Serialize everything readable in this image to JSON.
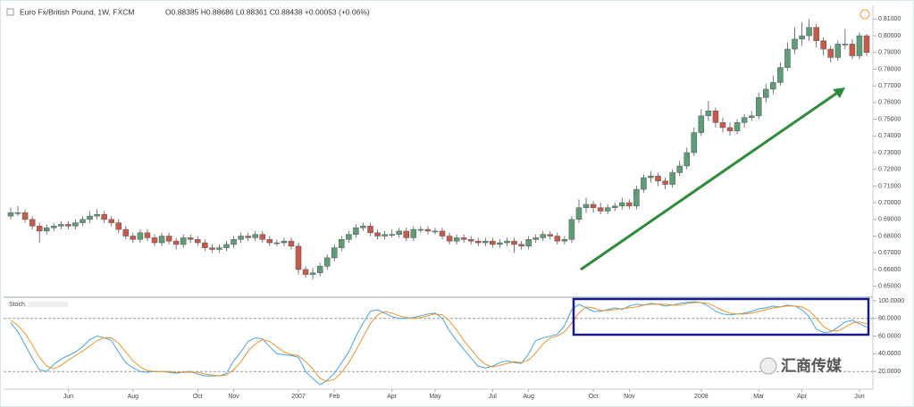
{
  "chart_data": [
    {
      "type": "candlestick",
      "title": "Euro Fx/British Pound, 1W, FXCM",
      "subtitle": "O0.88385 H0.88686 L0.88361 C0.88438 +0.00053 (+0.06%)",
      "up_color": "#5e9e77",
      "down_color": "#c95a4a",
      "open": [
        0.692,
        0.694,
        0.694,
        0.69,
        0.686,
        0.683,
        0.685,
        0.686,
        0.687,
        0.686,
        0.688,
        0.69,
        0.692,
        0.693,
        0.69,
        0.688,
        0.684,
        0.68,
        0.678,
        0.682,
        0.679,
        0.676,
        0.68,
        0.677,
        0.675,
        0.679,
        0.678,
        0.676,
        0.673,
        0.672,
        0.673,
        0.675,
        0.678,
        0.68,
        0.679,
        0.681,
        0.678,
        0.676,
        0.676,
        0.677,
        0.674,
        0.66,
        0.657,
        0.658,
        0.662,
        0.667,
        0.673,
        0.678,
        0.681,
        0.685,
        0.686,
        0.682,
        0.68,
        0.681,
        0.681,
        0.683,
        0.679,
        0.684,
        0.684,
        0.683,
        0.683,
        0.68,
        0.677,
        0.679,
        0.678,
        0.677,
        0.676,
        0.677,
        0.675,
        0.676,
        0.677,
        0.675,
        0.674,
        0.678,
        0.679,
        0.681,
        0.68,
        0.677,
        0.678,
        0.69,
        0.697,
        0.699,
        0.697,
        0.695,
        0.697,
        0.698,
        0.7,
        0.698,
        0.708,
        0.715,
        0.716,
        0.713,
        0.711,
        0.718,
        0.722,
        0.73,
        0.742,
        0.752,
        0.755,
        0.748,
        0.745,
        0.743,
        0.748,
        0.751,
        0.752,
        0.763,
        0.768,
        0.772,
        0.781,
        0.792,
        0.798,
        0.8,
        0.805,
        0.797,
        0.792,
        0.787,
        0.795,
        0.795,
        0.788,
        0.8
      ],
      "high": [
        0.697,
        0.698,
        0.696,
        0.692,
        0.688,
        0.687,
        0.688,
        0.689,
        0.689,
        0.69,
        0.692,
        0.695,
        0.696,
        0.695,
        0.692,
        0.69,
        0.686,
        0.682,
        0.684,
        0.684,
        0.681,
        0.682,
        0.682,
        0.679,
        0.681,
        0.681,
        0.68,
        0.678,
        0.675,
        0.675,
        0.677,
        0.68,
        0.682,
        0.682,
        0.683,
        0.683,
        0.68,
        0.678,
        0.679,
        0.679,
        0.676,
        0.662,
        0.661,
        0.664,
        0.669,
        0.675,
        0.68,
        0.683,
        0.687,
        0.688,
        0.688,
        0.684,
        0.683,
        0.684,
        0.685,
        0.685,
        0.686,
        0.686,
        0.686,
        0.685,
        0.685,
        0.682,
        0.681,
        0.681,
        0.68,
        0.679,
        0.679,
        0.679,
        0.678,
        0.679,
        0.679,
        0.677,
        0.68,
        0.681,
        0.683,
        0.683,
        0.682,
        0.68,
        0.692,
        0.702,
        0.703,
        0.701,
        0.7,
        0.699,
        0.7,
        0.703,
        0.702,
        0.71,
        0.717,
        0.719,
        0.718,
        0.715,
        0.72,
        0.725,
        0.733,
        0.745,
        0.756,
        0.761,
        0.757,
        0.751,
        0.748,
        0.75,
        0.753,
        0.755,
        0.766,
        0.771,
        0.776,
        0.784,
        0.796,
        0.805,
        0.808,
        0.81,
        0.807,
        0.799,
        0.794,
        0.797,
        0.804,
        0.798,
        0.802,
        0.801
      ],
      "low": [
        0.69,
        0.692,
        0.688,
        0.684,
        0.676,
        0.681,
        0.683,
        0.684,
        0.684,
        0.684,
        0.686,
        0.688,
        0.69,
        0.688,
        0.686,
        0.682,
        0.678,
        0.676,
        0.676,
        0.677,
        0.674,
        0.674,
        0.675,
        0.672,
        0.673,
        0.676,
        0.674,
        0.671,
        0.67,
        0.67,
        0.671,
        0.673,
        0.676,
        0.677,
        0.677,
        0.676,
        0.674,
        0.674,
        0.674,
        0.672,
        0.657,
        0.655,
        0.654,
        0.656,
        0.66,
        0.665,
        0.671,
        0.676,
        0.679,
        0.683,
        0.68,
        0.678,
        0.678,
        0.679,
        0.679,
        0.677,
        0.677,
        0.682,
        0.681,
        0.681,
        0.678,
        0.675,
        0.675,
        0.676,
        0.675,
        0.674,
        0.674,
        0.673,
        0.673,
        0.674,
        0.67,
        0.672,
        0.672,
        0.676,
        0.677,
        0.678,
        0.675,
        0.675,
        0.676,
        0.688,
        0.694,
        0.694,
        0.693,
        0.693,
        0.695,
        0.696,
        0.696,
        0.696,
        0.706,
        0.712,
        0.71,
        0.708,
        0.709,
        0.716,
        0.72,
        0.728,
        0.74,
        0.749,
        0.745,
        0.742,
        0.74,
        0.741,
        0.745,
        0.749,
        0.75,
        0.76,
        0.765,
        0.77,
        0.779,
        0.789,
        0.794,
        0.797,
        0.793,
        0.788,
        0.784,
        0.785,
        0.792,
        0.786,
        0.786,
        0.788
      ],
      "close": [
        0.694,
        0.694,
        0.69,
        0.686,
        0.683,
        0.685,
        0.686,
        0.687,
        0.686,
        0.688,
        0.69,
        0.692,
        0.693,
        0.69,
        0.688,
        0.684,
        0.68,
        0.678,
        0.682,
        0.679,
        0.676,
        0.68,
        0.677,
        0.675,
        0.679,
        0.678,
        0.676,
        0.673,
        0.672,
        0.673,
        0.675,
        0.678,
        0.68,
        0.679,
        0.681,
        0.678,
        0.676,
        0.676,
        0.677,
        0.674,
        0.66,
        0.657,
        0.658,
        0.662,
        0.667,
        0.673,
        0.678,
        0.681,
        0.685,
        0.686,
        0.682,
        0.68,
        0.681,
        0.681,
        0.683,
        0.679,
        0.684,
        0.684,
        0.683,
        0.683,
        0.68,
        0.677,
        0.679,
        0.678,
        0.677,
        0.676,
        0.677,
        0.675,
        0.676,
        0.677,
        0.675,
        0.674,
        0.678,
        0.679,
        0.681,
        0.68,
        0.677,
        0.678,
        0.69,
        0.697,
        0.699,
        0.697,
        0.695,
        0.697,
        0.698,
        0.7,
        0.698,
        0.708,
        0.715,
        0.716,
        0.713,
        0.711,
        0.718,
        0.722,
        0.73,
        0.742,
        0.752,
        0.755,
        0.748,
        0.745,
        0.743,
        0.748,
        0.751,
        0.752,
        0.763,
        0.768,
        0.772,
        0.781,
        0.792,
        0.798,
        0.8,
        0.805,
        0.797,
        0.792,
        0.787,
        0.795,
        0.795,
        0.788,
        0.8,
        0.79
      ],
      "ylim": [
        0.645,
        0.815
      ],
      "yticks": [
        {
          "value": 0.65,
          "label": "0.65000"
        },
        {
          "value": 0.66,
          "label": "0.66000"
        },
        {
          "value": 0.67,
          "label": "0.67000"
        },
        {
          "value": 0.68,
          "label": "0.68000"
        },
        {
          "value": 0.69,
          "label": "0.69000"
        },
        {
          "value": 0.7,
          "label": "0.70000"
        },
        {
          "value": 0.71,
          "label": "0.71000"
        },
        {
          "value": 0.72,
          "label": "0.72000"
        },
        {
          "value": 0.73,
          "label": "0.73000"
        },
        {
          "value": 0.74,
          "label": "0.74000"
        },
        {
          "value": 0.75,
          "label": "0.75000"
        },
        {
          "value": 0.76,
          "label": "0.76000"
        },
        {
          "value": 0.77,
          "label": "0.77000"
        },
        {
          "value": 0.78,
          "label": "0.78000"
        },
        {
          "value": 0.79,
          "label": "0.79000"
        },
        {
          "value": 0.8,
          "label": "0.80000"
        },
        {
          "value": 0.81,
          "label": "0.81000"
        }
      ],
      "xticks": [
        {
          "value": 8,
          "label": "Jun"
        },
        {
          "value": 17,
          "label": "Aug"
        },
        {
          "value": 26,
          "label": "Oct"
        },
        {
          "value": 31,
          "label": "Nov"
        },
        {
          "value": 40,
          "label": "2007"
        },
        {
          "value": 45,
          "label": "Feb"
        },
        {
          "value": 53,
          "label": "Apr"
        },
        {
          "value": 59,
          "label": "May"
        },
        {
          "value": 67,
          "label": "Jul"
        },
        {
          "value": 72,
          "label": "Aug"
        },
        {
          "value": 81,
          "label": "Oct"
        },
        {
          "value": 86,
          "label": "Nov"
        },
        {
          "value": 96,
          "label": "2008"
        },
        {
          "value": 104,
          "label": "Mar"
        },
        {
          "value": 110,
          "label": "Apr"
        },
        {
          "value": 118,
          "label": "Jun"
        }
      ]
    },
    {
      "type": "line",
      "title": "Stoch",
      "ylim": [
        0,
        104
      ],
      "yticks": [
        {
          "value": 100,
          "label": "100.0000"
        },
        {
          "value": 80,
          "label": "80.0000"
        },
        {
          "value": 60,
          "label": "60.0000"
        },
        {
          "value": 40,
          "label": "40.0000"
        },
        {
          "value": 20,
          "label": "20.0000"
        }
      ],
      "levels": [
        80,
        20
      ],
      "series": [
        {
          "color": "#4aa3df",
          "values": [
            75,
            65,
            50,
            35,
            22,
            20,
            28,
            34,
            38,
            42,
            48,
            56,
            60,
            58,
            55,
            42,
            30,
            24,
            20,
            19,
            20,
            20,
            19,
            18,
            19,
            20,
            17,
            15,
            15,
            15,
            18,
            32,
            42,
            54,
            58,
            57,
            48,
            40,
            39,
            38,
            36,
            20,
            12,
            5,
            10,
            18,
            30,
            42,
            60,
            75,
            88,
            90,
            86,
            82,
            80,
            80,
            81,
            83,
            85,
            86,
            80,
            66,
            55,
            45,
            35,
            26,
            24,
            26,
            30,
            32,
            30,
            29,
            40,
            55,
            58,
            60,
            62,
            72,
            90,
            96,
            92,
            88,
            88,
            90,
            92,
            90,
            94,
            96,
            95,
            97,
            96,
            94,
            95,
            97,
            98,
            99,
            98,
            94,
            88,
            85,
            84,
            85,
            86,
            88,
            91,
            92,
            94,
            93,
            95,
            94,
            90,
            82,
            68,
            64,
            65,
            70,
            76,
            78,
            74,
            70
          ]
        },
        {
          "color": "#e8962e",
          "values": [
            78,
            72,
            63,
            50,
            36,
            26,
            23,
            27,
            33,
            38,
            43,
            49,
            55,
            58,
            58,
            52,
            42,
            32,
            25,
            21,
            20,
            20,
            20,
            19,
            19,
            19,
            19,
            17,
            16,
            15,
            16,
            22,
            31,
            43,
            51,
            56,
            54,
            48,
            42,
            39,
            38,
            31,
            23,
            12,
            9,
            11,
            19,
            30,
            44,
            59,
            74,
            84,
            88,
            86,
            83,
            81,
            80,
            81,
            83,
            85,
            84,
            77,
            67,
            55,
            45,
            35,
            28,
            25,
            27,
            29,
            31,
            30,
            33,
            41,
            51,
            58,
            60,
            65,
            75,
            86,
            93,
            92,
            89,
            89,
            90,
            91,
            92,
            93,
            95,
            96,
            96,
            96,
            95,
            95,
            97,
            98,
            98,
            97,
            93,
            89,
            86,
            85,
            85,
            86,
            88,
            90,
            92,
            93,
            94,
            94,
            93,
            89,
            80,
            71,
            66,
            66,
            70,
            75,
            76,
            74
          ]
        }
      ]
    }
  ],
  "watermark": "汇商传媒"
}
